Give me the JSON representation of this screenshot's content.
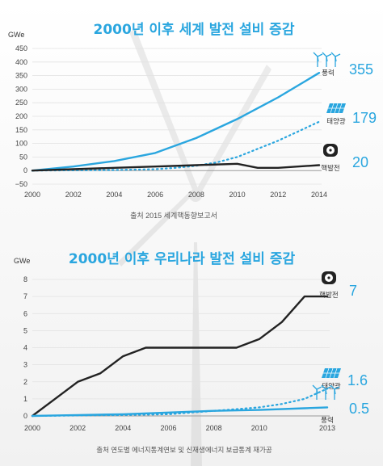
{
  "chart_data": [
    {
      "type": "line",
      "title": "2000년 이후 세계 발전 설비 증감",
      "ylabel": "GWe",
      "xlim": [
        2000,
        2014
      ],
      "ylim": [
        -50,
        450
      ],
      "x_ticks": [
        "2000",
        "2002",
        "2004",
        "2006",
        "2008",
        "2010",
        "2012",
        "2014"
      ],
      "y_ticks": [
        "450",
        "400",
        "350",
        "300",
        "250",
        "200",
        "150",
        "100",
        "50",
        "0",
        "−50"
      ],
      "source": "출처 2015 세계핵동향보고서",
      "series": [
        {
          "name": "풍력",
          "end_label": "355",
          "color": "#2aa6df",
          "style": "solid",
          "x": [
            2000,
            2002,
            2004,
            2006,
            2008,
            2010,
            2012,
            2014
          ],
          "y": [
            0,
            15,
            35,
            65,
            120,
            190,
            270,
            360
          ]
        },
        {
          "name": "태양광",
          "end_label": "179",
          "color": "#2aa6df",
          "style": "dotted",
          "x": [
            2000,
            2004,
            2006,
            2007,
            2008,
            2009,
            2010,
            2011,
            2012,
            2013,
            2014
          ],
          "y": [
            0,
            2,
            5,
            10,
            18,
            30,
            50,
            80,
            110,
            145,
            180
          ]
        },
        {
          "name": "핵발전",
          "end_label": "20",
          "color": "#222222",
          "style": "solid",
          "x": [
            2000,
            2002,
            2004,
            2006,
            2008,
            2010,
            2011,
            2012,
            2014
          ],
          "y": [
            0,
            5,
            10,
            15,
            20,
            25,
            10,
            10,
            20
          ]
        }
      ]
    },
    {
      "type": "line",
      "title": "2000년 이후 우리나라 발전 설비 증감",
      "ylabel": "GWe",
      "xlim": [
        2000,
        2013
      ],
      "ylim": [
        0,
        8
      ],
      "x_ticks": [
        "2000",
        "2002",
        "2004",
        "2006",
        "2008",
        "2010",
        "2013"
      ],
      "y_ticks": [
        "8",
        "7",
        "6",
        "5",
        "4",
        "3",
        "2",
        "1",
        "0"
      ],
      "source": "출처 연도별 에너지통계연보 및 신재생에너지 보급통계 재가공",
      "series": [
        {
          "name": "핵발전",
          "end_label": "7",
          "color": "#222222",
          "style": "solid",
          "x": [
            2000,
            2001,
            2002,
            2003,
            2004,
            2005,
            2006,
            2007,
            2008,
            2009,
            2010,
            2011,
            2012,
            2013
          ],
          "y": [
            0,
            1,
            2,
            2.5,
            3.5,
            4,
            4,
            4,
            4,
            4,
            4.5,
            5.5,
            7,
            7
          ]
        },
        {
          "name": "태양광",
          "end_label": "1.6",
          "color": "#2aa6df",
          "style": "dotted",
          "x": [
            2000,
            2004,
            2006,
            2008,
            2009,
            2010,
            2011,
            2012,
            2013
          ],
          "y": [
            0,
            0.05,
            0.1,
            0.3,
            0.4,
            0.5,
            0.7,
            1.0,
            1.6
          ]
        },
        {
          "name": "풍력",
          "end_label": "0.5",
          "color": "#2aa6df",
          "style": "solid",
          "x": [
            2000,
            2002,
            2004,
            2006,
            2008,
            2010,
            2012,
            2013
          ],
          "y": [
            0,
            0.05,
            0.1,
            0.2,
            0.3,
            0.35,
            0.45,
            0.5
          ]
        }
      ]
    }
  ]
}
